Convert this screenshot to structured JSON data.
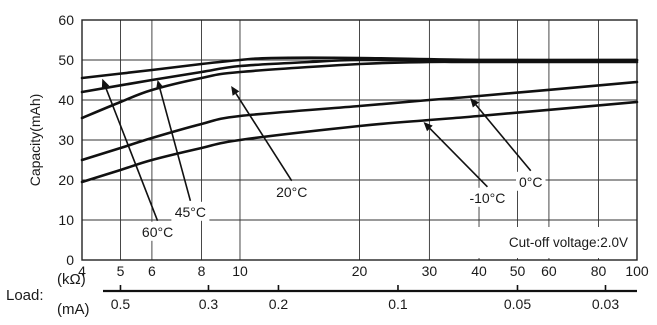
{
  "chart_data": {
    "type": "line",
    "ylabel": "Capacity(mAh)",
    "ylim": [
      0,
      60
    ],
    "yticks": [
      0,
      10,
      20,
      30,
      40,
      50,
      60
    ],
    "x_scale": "log",
    "xlim": [
      4,
      100
    ],
    "xticks": [
      4,
      5,
      6,
      8,
      10,
      20,
      30,
      40,
      50,
      60,
      80,
      100
    ],
    "x_unit": "(kΩ)",
    "load_label": "Load:",
    "secondary_axis": {
      "unit": "(mA)",
      "ticks": [
        {
          "label": "0.5",
          "kohm": 5
        },
        {
          "label": "0.3",
          "kohm": 8.33
        },
        {
          "label": "0.2",
          "kohm": 12.5
        },
        {
          "label": "0.1",
          "kohm": 25
        },
        {
          "label": "0.05",
          "kohm": 50
        },
        {
          "label": "0.03",
          "kohm": 83.3
        }
      ]
    },
    "grid": true,
    "annotation": "Cut-off voltage:2.0V",
    "series": [
      {
        "name": "60°C",
        "x": [
          4,
          6,
          8,
          10,
          12,
          20,
          40,
          100
        ],
        "y": [
          45.5,
          47.5,
          49,
          50,
          50.5,
          50.5,
          50,
          50
        ],
        "label": {
          "x": 6.2,
          "y": 7.3
        },
        "arrow_to": {
          "x": 4.5,
          "y": 45.3
        }
      },
      {
        "name": "45°C",
        "x": [
          4,
          6,
          8,
          10,
          15,
          20,
          40,
          100
        ],
        "y": [
          42,
          45,
          47,
          48.5,
          49.5,
          50,
          50,
          50
        ],
        "label": {
          "x": 7.5,
          "y": 12.3
        },
        "arrow_to": {
          "x": 6.2,
          "y": 45
        }
      },
      {
        "name": "20°C",
        "x": [
          4,
          5,
          6,
          8,
          10,
          20,
          30,
          40,
          100
        ],
        "y": [
          35.5,
          39.5,
          42.5,
          45.5,
          47,
          49,
          49.5,
          49.5,
          49.5
        ],
        "label": {
          "x": 13.5,
          "y": 17.3
        },
        "arrow_to": {
          "x": 9.5,
          "y": 43.5
        }
      },
      {
        "name": "0°C",
        "x": [
          4,
          5,
          6,
          8,
          10,
          20,
          30,
          40,
          100
        ],
        "y": [
          25,
          28,
          30.5,
          34,
          36,
          38.5,
          40,
          41,
          44.5
        ],
        "label": {
          "x": 54,
          "y": 19.8
        },
        "arrow_to": {
          "x": 38,
          "y": 40.5
        }
      },
      {
        "name": "-10°C",
        "x": [
          4,
          5,
          6,
          8,
          10,
          20,
          30,
          40,
          100
        ],
        "y": [
          19.5,
          22.5,
          25,
          28,
          30,
          33.5,
          35,
          36,
          39.5
        ],
        "label": {
          "x": 42,
          "y": 15.8
        },
        "arrow_to": {
          "x": 29,
          "y": 34.5
        }
      }
    ]
  }
}
